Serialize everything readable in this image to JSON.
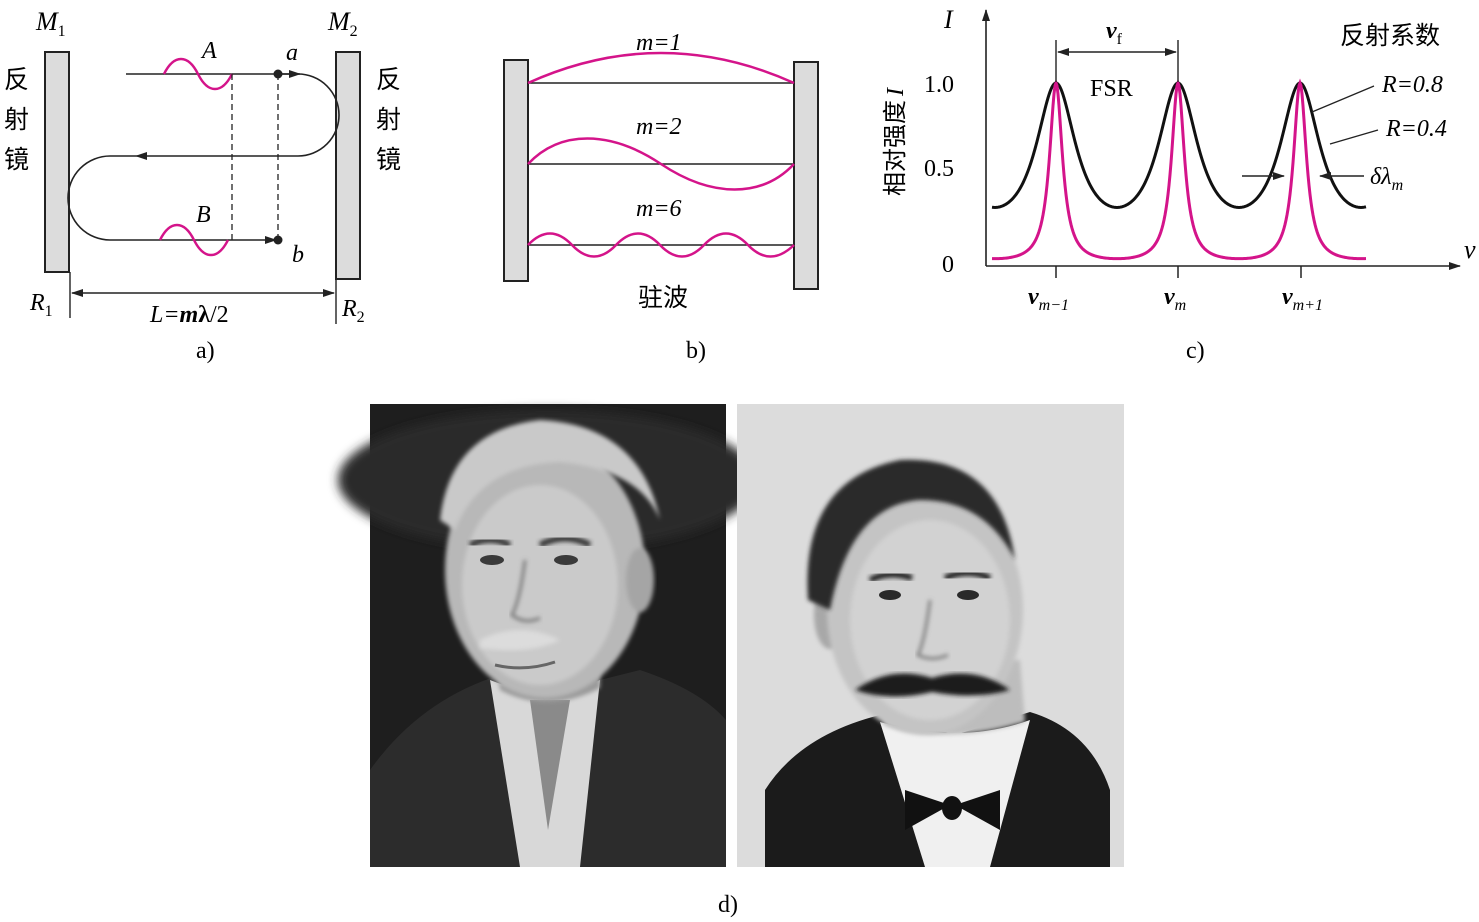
{
  "panel_a": {
    "mirror_left": "M",
    "mirror_left_sub": "1",
    "mirror_right": "M",
    "mirror_right_sub": "2",
    "reflector_left_chars": [
      "反",
      "射",
      "镜"
    ],
    "reflector_right_chars": [
      "反",
      "射",
      "镜"
    ],
    "wave_a": "A",
    "wave_b": "B",
    "point_a": "a",
    "point_b": "b",
    "refl_left": "R",
    "refl_left_sub": "1",
    "refl_right": "R",
    "refl_right_sub": "2",
    "length_prefix": "L=",
    "length_m": "m",
    "length_lambda": "λ",
    "length_suffix": "/2",
    "caption": "a)"
  },
  "panel_b": {
    "mode1": "m=1",
    "mode2": "m=2",
    "mode6": "m=6",
    "label": "驻波",
    "caption": "b)"
  },
  "panel_c": {
    "axis_i": "I",
    "axis_nu": "ν",
    "ylabel_cn": "相对强度",
    "ylabel_var": "I",
    "vf_main": "ν",
    "vf_sub": "f",
    "fsr": "FSR",
    "legend_title": "反射系数",
    "r08": "R=0.8",
    "r04": "R=0.4",
    "dl_main": "δλ",
    "dl_sub": "m",
    "x1_main": "ν",
    "x1_sub": "m−1",
    "x2_main": "ν",
    "x2_sub": "m",
    "x3_main": "ν",
    "x3_sub": "m+1",
    "caption": "c)"
  },
  "chart_data": {
    "type": "line",
    "x": [
      "νm−1",
      "νm",
      "νm+1"
    ],
    "yticks": [
      "1.0",
      "0.5",
      "0"
    ],
    "ylim": [
      0,
      1.0
    ],
    "series": [
      {
        "name": "R=0.8",
        "peak": 1.0,
        "min": 0.04,
        "color": "#d4148a"
      },
      {
        "name": "R=0.4",
        "peak": 1.0,
        "min": 0.32,
        "color": "#111111"
      }
    ]
  },
  "panel_d": {
    "caption": "d)"
  },
  "colors": {
    "magenta": "#d4148a",
    "mirror_fill": "#dcdcdc",
    "line": "#222222"
  }
}
